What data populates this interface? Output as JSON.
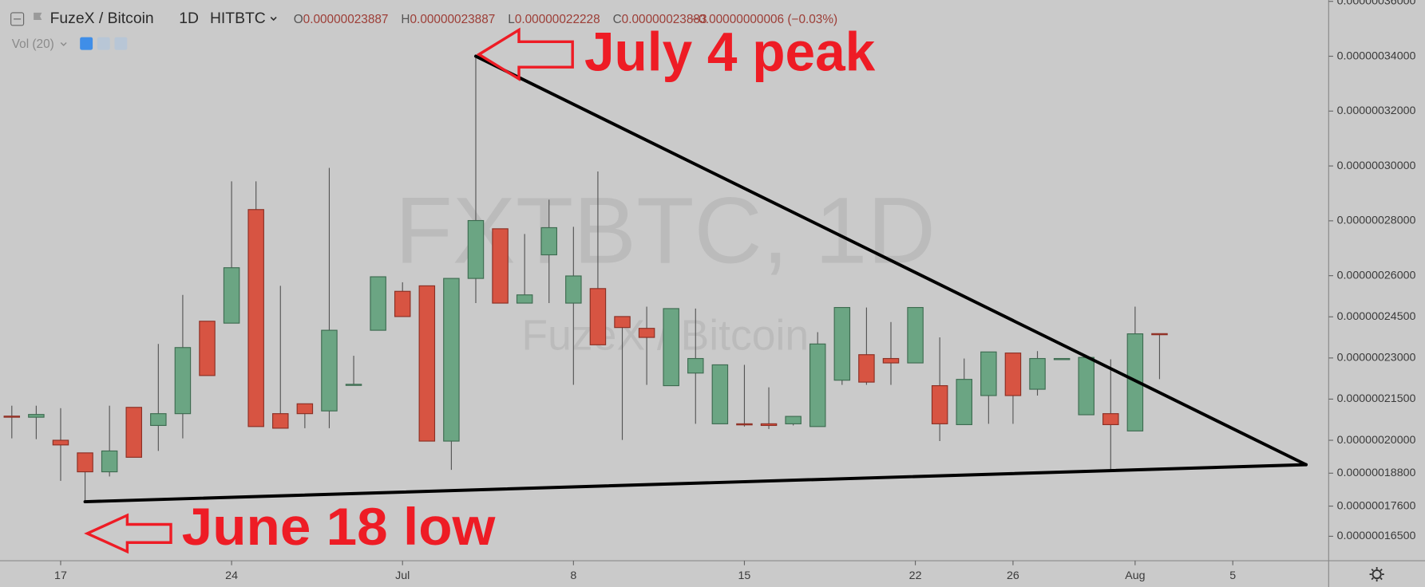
{
  "header": {
    "symbol": "FuzeX / Bitcoin",
    "interval": "1D",
    "exchange": "HITBTC",
    "ohlc": [
      {
        "label": "O",
        "value": "0.00000023887"
      },
      {
        "label": "H",
        "value": "0.00000023887"
      },
      {
        "label": "L",
        "value": "0.00000022228"
      },
      {
        "label": "C",
        "value": "0.00000023883"
      }
    ],
    "change": "−0.00000000006 (−0.03%)",
    "volume_indicator": "Vol (20)",
    "watermark_title": "FXTBTC, 1D",
    "watermark_subtitle": "FuzeX / Bitcoin"
  },
  "chart_data": {
    "type": "candlestick",
    "up_color": "#6ba583",
    "down_color": "#d75442",
    "categories": [
      null,
      null,
      "17",
      null,
      null,
      null,
      null,
      null,
      null,
      "24",
      null,
      null,
      null,
      null,
      null,
      null,
      "Jul",
      null,
      null,
      null,
      null,
      null,
      null,
      "8",
      null,
      null,
      null,
      null,
      null,
      null,
      "15",
      null,
      null,
      null,
      null,
      null,
      null,
      "22",
      null,
      null,
      null,
      "26",
      null,
      null,
      null,
      null,
      "Aug",
      null,
      null,
      null,
      "5",
      null,
      null,
      null
    ],
    "open": [
      2.088e-07,
      2.084e-07,
      2e-07,
      1.954e-07,
      1.885e-07,
      2.12e-07,
      2.054e-07,
      2.097e-07,
      2.434e-07,
      2.427e-07,
      2.841e-07,
      2.097e-07,
      2.133e-07,
      2.107e-07,
      2.202e-07,
      2.401e-07,
      2.543e-07,
      2.563e-07,
      1.997e-07,
      2.59e-07,
      2.771e-07,
      2.5e-07,
      2.676e-07,
      2.5e-07,
      2.553e-07,
      2.451e-07,
      2.408e-07,
      2.199e-07,
      2.245e-07,
      2.06e-07,
      2.06e-07,
      2.06e-07,
      2.06e-07,
      2.05e-07,
      2.219e-07,
      2.312e-07,
      2.298e-07,
      2.282e-07,
      2.199e-07,
      2.057e-07,
      2.163e-07,
      2.318e-07,
      2.186e-07,
      2.296e-07,
      2.093e-07,
      2.097e-07,
      2.034e-07,
      2.3887e-07,
      null,
      null,
      null,
      null,
      null,
      null
    ],
    "high": [
      2.126e-07,
      2.126e-07,
      2.117e-07,
      1.954e-07,
      2.126e-07,
      2.12e-07,
      2.351e-07,
      2.53e-07,
      2.434e-07,
      2.944e-07,
      2.944e-07,
      2.563e-07,
      2.133e-07,
      2.993e-07,
      2.308e-07,
      2.596e-07,
      2.576e-07,
      2.563e-07,
      2.59e-07,
      3.4e-07,
      2.771e-07,
      2.752e-07,
      2.877e-07,
      2.778e-07,
      2.98e-07,
      2.451e-07,
      2.487e-07,
      2.48e-07,
      2.48e-07,
      2.275e-07,
      2.275e-07,
      2.193e-07,
      2.087e-07,
      2.394e-07,
      2.484e-07,
      2.484e-07,
      2.431e-07,
      2.484e-07,
      2.375e-07,
      2.298e-07,
      2.322e-07,
      2.318e-07,
      2.325e-07,
      2.298e-07,
      2.302e-07,
      2.295e-07,
      2.487e-07,
      2.3887e-07,
      null,
      null,
      null,
      null,
      null,
      null
    ],
    "low": [
      2.007e-07,
      2.004e-07,
      1.852e-07,
      1.776e-07,
      1.868e-07,
      1.938e-07,
      1.961e-07,
      2.007e-07,
      2.236e-07,
      2.427e-07,
      2.05e-07,
      2.044e-07,
      2.044e-07,
      2.044e-07,
      2.202e-07,
      2.401e-07,
      2.451e-07,
      1.997e-07,
      1.892e-07,
      2.5e-07,
      2.5e-07,
      2.5e-07,
      2.5e-07,
      2.202e-07,
      2.348e-07,
      2.001e-07,
      2.202e-07,
      2.199e-07,
      2.06e-07,
      2.06e-07,
      2.05e-07,
      2.041e-07,
      2.054e-07,
      2.05e-07,
      2.202e-07,
      2.202e-07,
      2.202e-07,
      2.282e-07,
      1.997e-07,
      2.057e-07,
      2.06e-07,
      2.06e-07,
      2.163e-07,
      2.296e-07,
      2.093e-07,
      1.885e-07,
      2.034e-07,
      2.2228e-07,
      null,
      null,
      null,
      null,
      null,
      null
    ],
    "close": [
      2.086e-07,
      2.094e-07,
      1.983e-07,
      1.885e-07,
      1.961e-07,
      1.938e-07,
      2.097e-07,
      2.338e-07,
      2.236e-07,
      2.629e-07,
      2.05e-07,
      2.044e-07,
      2.097e-07,
      2.401e-07,
      2.204e-07,
      2.596e-07,
      2.451e-07,
      1.997e-07,
      2.59e-07,
      2.801e-07,
      2.5e-07,
      2.53e-07,
      2.775e-07,
      2.599e-07,
      2.348e-07,
      2.411e-07,
      2.375e-07,
      2.48e-07,
      2.298e-07,
      2.275e-07,
      2.057e-07,
      2.054e-07,
      2.087e-07,
      2.351e-07,
      2.484e-07,
      2.212e-07,
      2.282e-07,
      2.484e-07,
      2.06e-07,
      2.222e-07,
      2.322e-07,
      2.163e-07,
      2.298e-07,
      2.298e-07,
      2.302e-07,
      2.057e-07,
      2.388e-07,
      2.3883e-07,
      null,
      null,
      null,
      null,
      null,
      null
    ],
    "ylim": [
      1.561e-07,
      3.605e-07
    ],
    "yticks": [
      {
        "value": 3.6e-07,
        "label": "0.00000036000"
      },
      {
        "value": 3.4e-07,
        "label": "0.00000034000"
      },
      {
        "value": 3.2e-07,
        "label": "0.00000032000"
      },
      {
        "value": 3e-07,
        "label": "0.00000030000"
      },
      {
        "value": 2.8e-07,
        "label": "0.00000028000"
      },
      {
        "value": 2.6e-07,
        "label": "0.00000026000"
      },
      {
        "value": 2.45e-07,
        "label": "0.00000024500"
      },
      {
        "value": 2.3e-07,
        "label": "0.00000023000"
      },
      {
        "value": 2.15e-07,
        "label": "0.00000021500"
      },
      {
        "value": 2e-07,
        "label": "0.00000020000"
      },
      {
        "value": 1.88e-07,
        "label": "0.00000018800"
      },
      {
        "value": 1.76e-07,
        "label": "0.00000017600"
      },
      {
        "value": 1.65e-07,
        "label": "0.00000016500"
      }
    ],
    "trend_lines": [
      {
        "points": [
          [
            19,
            3.4e-07
          ],
          [
            53,
            1.911e-07
          ]
        ]
      },
      {
        "points": [
          [
            3,
            1.776e-07
          ],
          [
            53,
            1.911e-07
          ]
        ]
      }
    ],
    "annotations": [
      "July 4 peak",
      "June 18 low"
    ]
  }
}
